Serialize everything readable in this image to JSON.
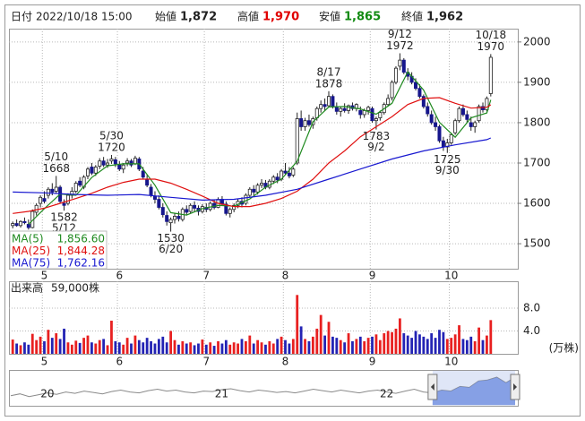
{
  "header": {
    "date_label": "日付",
    "date": "2022/10/18 15:00",
    "open_label": "始値",
    "open": "1,872",
    "high_label": "高値",
    "high": "1,970",
    "low_label": "安値",
    "low": "1,865",
    "close_label": "終値",
    "close": "1,962"
  },
  "chart_data": [
    {
      "type": "candlestick",
      "categories": [
        null,
        null,
        null,
        null,
        null,
        null,
        null,
        null,
        "5",
        null,
        null,
        null,
        null,
        null,
        null,
        null,
        null,
        null,
        null,
        null,
        null,
        null,
        null,
        null,
        null,
        null,
        null,
        "6",
        null,
        null,
        null,
        null,
        null,
        null,
        null,
        null,
        null,
        null,
        null,
        null,
        null,
        null,
        null,
        null,
        null,
        null,
        null,
        null,
        null,
        "7",
        null,
        null,
        null,
        null,
        null,
        null,
        null,
        null,
        null,
        null,
        null,
        null,
        null,
        null,
        null,
        null,
        null,
        null,
        null,
        "8",
        null,
        null,
        null,
        null,
        null,
        null,
        null,
        null,
        null,
        null,
        null,
        null,
        null,
        null,
        null,
        null,
        null,
        null,
        null,
        null,
        null,
        "9",
        null,
        null,
        null,
        null,
        null,
        null,
        null,
        null,
        null,
        null,
        null,
        null,
        null,
        null,
        null,
        null,
        null,
        null,
        null,
        "10",
        null,
        null,
        null,
        null,
        null,
        null,
        null,
        null,
        null,
        null
      ],
      "open": [
        1545,
        1550,
        1545,
        1555,
        1548,
        1540,
        1578,
        1600,
        1612,
        1620,
        1635,
        1630,
        1640,
        1600,
        1600,
        1620,
        1630,
        1655,
        1640,
        1668,
        1690,
        1675,
        1692,
        1705,
        1695,
        1705,
        1708,
        1695,
        1685,
        1700,
        1705,
        1698,
        1710,
        1680,
        1660,
        1640,
        1618,
        1610,
        1590,
        1570,
        1552,
        1560,
        1568,
        1560,
        1585,
        1580,
        1595,
        1588,
        1580,
        1590,
        1585,
        1600,
        1590,
        1610,
        1598,
        1575,
        1585,
        1595,
        1605,
        1600,
        1620,
        1635,
        1628,
        1645,
        1650,
        1640,
        1655,
        1665,
        1660,
        1680,
        1675,
        1670,
        1700,
        1810,
        1790,
        1805,
        1795,
        1812,
        1835,
        1845,
        1842,
        1865,
        1840,
        1828,
        1835,
        1830,
        1842,
        1835,
        1830,
        1820,
        1830,
        1835,
        1805,
        1812,
        1825,
        1845,
        1862,
        1900,
        1940,
        1955,
        1925,
        1915,
        1900,
        1885,
        1865,
        1840,
        1820,
        1800,
        1790,
        1755,
        1740,
        1750,
        1775,
        1805,
        1835,
        1820,
        1800,
        1790,
        1805,
        1840,
        1832,
        1872
      ],
      "high": [
        1555,
        1560,
        1558,
        1565,
        1560,
        1585,
        1600,
        1620,
        1630,
        1640,
        1650,
        1668,
        1645,
        1610,
        1625,
        1640,
        1655,
        1665,
        1670,
        1690,
        1700,
        1695,
        1712,
        1715,
        1710,
        1720,
        1715,
        1705,
        1700,
        1712,
        1710,
        1718,
        1715,
        1690,
        1670,
        1648,
        1630,
        1620,
        1600,
        1580,
        1565,
        1575,
        1580,
        1590,
        1595,
        1600,
        1605,
        1595,
        1598,
        1600,
        1605,
        1610,
        1615,
        1618,
        1605,
        1590,
        1600,
        1610,
        1615,
        1625,
        1640,
        1645,
        1650,
        1660,
        1658,
        1660,
        1670,
        1675,
        1685,
        1700,
        1690,
        1690,
        1825,
        1830,
        1812,
        1820,
        1815,
        1840,
        1855,
        1860,
        1878,
        1870,
        1850,
        1840,
        1848,
        1845,
        1850,
        1848,
        1840,
        1835,
        1842,
        1840,
        1815,
        1830,
        1850,
        1870,
        1905,
        1940,
        1972,
        1960,
        1935,
        1925,
        1910,
        1895,
        1870,
        1850,
        1830,
        1815,
        1795,
        1765,
        1760,
        1775,
        1810,
        1840,
        1845,
        1830,
        1815,
        1805,
        1845,
        1850,
        1865,
        1970
      ],
      "low": [
        1538,
        1542,
        1540,
        1548,
        1535,
        1538,
        1570,
        1590,
        1600,
        1612,
        1620,
        1625,
        1600,
        1582,
        1595,
        1612,
        1625,
        1640,
        1635,
        1660,
        1670,
        1668,
        1685,
        1690,
        1688,
        1698,
        1690,
        1680,
        1675,
        1692,
        1690,
        1695,
        1680,
        1660,
        1640,
        1615,
        1600,
        1585,
        1565,
        1545,
        1530,
        1550,
        1555,
        1555,
        1570,
        1575,
        1580,
        1570,
        1575,
        1578,
        1580,
        1585,
        1588,
        1595,
        1570,
        1565,
        1578,
        1588,
        1590,
        1595,
        1615,
        1620,
        1622,
        1638,
        1635,
        1635,
        1648,
        1650,
        1655,
        1670,
        1662,
        1665,
        1695,
        1780,
        1780,
        1790,
        1785,
        1805,
        1825,
        1830,
        1838,
        1835,
        1820,
        1815,
        1825,
        1822,
        1830,
        1828,
        1810,
        1812,
        1820,
        1800,
        1783,
        1805,
        1820,
        1840,
        1855,
        1895,
        1930,
        1920,
        1905,
        1895,
        1880,
        1860,
        1835,
        1815,
        1795,
        1780,
        1750,
        1730,
        1725,
        1745,
        1770,
        1800,
        1815,
        1800,
        1780,
        1775,
        1800,
        1825,
        1828,
        1865
      ],
      "close": [
        1550,
        1545,
        1555,
        1552,
        1540,
        1580,
        1595,
        1615,
        1605,
        1635,
        1628,
        1640,
        1605,
        1595,
        1620,
        1630,
        1650,
        1645,
        1665,
        1685,
        1675,
        1690,
        1705,
        1695,
        1700,
        1710,
        1698,
        1685,
        1695,
        1705,
        1695,
        1712,
        1685,
        1665,
        1645,
        1620,
        1610,
        1590,
        1572,
        1555,
        1560,
        1568,
        1562,
        1585,
        1578,
        1595,
        1588,
        1580,
        1592,
        1585,
        1600,
        1590,
        1610,
        1598,
        1575,
        1585,
        1595,
        1605,
        1598,
        1620,
        1635,
        1628,
        1645,
        1650,
        1640,
        1655,
        1665,
        1658,
        1680,
        1675,
        1668,
        1685,
        1810,
        1790,
        1805,
        1795,
        1810,
        1835,
        1845,
        1840,
        1865,
        1840,
        1828,
        1835,
        1830,
        1842,
        1835,
        1845,
        1820,
        1830,
        1838,
        1805,
        1810,
        1825,
        1845,
        1860,
        1900,
        1935,
        1955,
        1925,
        1915,
        1900,
        1885,
        1865,
        1840,
        1822,
        1800,
        1790,
        1755,
        1740,
        1750,
        1770,
        1805,
        1835,
        1820,
        1808,
        1790,
        1800,
        1840,
        1832,
        1860,
        1962
      ],
      "up_color": "#ffffff",
      "down_color": "#16168c",
      "ylim": [
        1438,
        2033
      ],
      "yticks": [
        1500,
        1600,
        1700,
        1800,
        1900,
        2000
      ],
      "grid": true,
      "annotations": [
        {
          "date": "5/10",
          "price": 1668
        },
        {
          "date": "5/12",
          "price": 1582
        },
        {
          "date": "5/30",
          "price": 1720
        },
        {
          "date": "6/20",
          "price": 1530
        },
        {
          "date": "8/17",
          "price": 1878
        },
        {
          "date": "9/2",
          "price": 1783
        },
        {
          "date": "9/12",
          "price": 1972
        },
        {
          "date": "9/30",
          "price": 1725
        },
        {
          "date": "10/18",
          "price": 1970
        }
      ],
      "series": [
        {
          "name": "MA(5)",
          "color": "#1f8a1f",
          "legend_value": {
            "value": 1856.6,
            "label": "1,856.60"
          },
          "x": [
            4,
            8,
            12,
            16,
            20,
            24,
            28,
            32,
            36,
            40,
            44,
            48,
            52,
            56,
            60,
            64,
            68,
            72,
            76,
            80,
            84,
            88,
            92,
            96,
            100,
            104,
            108,
            112,
            116,
            120,
            121
          ],
          "values": [
            1548,
            1587,
            1623,
            1620,
            1664,
            1693,
            1698,
            1698,
            1645,
            1577,
            1571,
            1587,
            1595,
            1593,
            1611,
            1640,
            1660,
            1704,
            1802,
            1839,
            1840,
            1834,
            1821,
            1848,
            1926,
            1881,
            1801,
            1764,
            1812,
            1824,
            1856.6
          ]
        },
        {
          "name": "MA(25)",
          "color": "#e01010",
          "legend_value": {
            "value": 1844.28,
            "label": "1,844.28"
          },
          "x": [
            0,
            4,
            8,
            12,
            16,
            20,
            24,
            28,
            32,
            36,
            40,
            44,
            48,
            52,
            56,
            60,
            64,
            68,
            72,
            76,
            80,
            84,
            88,
            92,
            96,
            100,
            104,
            108,
            112,
            116,
            120,
            121
          ],
          "values": [
            1575,
            1580,
            1588,
            1600,
            1612,
            1625,
            1640,
            1652,
            1660,
            1660,
            1650,
            1635,
            1618,
            1600,
            1592,
            1592,
            1600,
            1612,
            1630,
            1660,
            1700,
            1730,
            1765,
            1790,
            1815,
            1845,
            1860,
            1862,
            1848,
            1836,
            1838,
            1844.28
          ]
        },
        {
          "name": "MA(75)",
          "color": "#1818d0",
          "legend_value": {
            "value": 1762.16,
            "label": "1,762.16"
          },
          "x": [
            0,
            8,
            16,
            24,
            32,
            40,
            48,
            56,
            64,
            72,
            80,
            88,
            96,
            104,
            112,
            120,
            121
          ],
          "values": [
            1628,
            1626,
            1622,
            1620,
            1622,
            1615,
            1608,
            1610,
            1620,
            1635,
            1660,
            1685,
            1710,
            1730,
            1745,
            1758,
            1762.16
          ]
        }
      ]
    },
    {
      "type": "bar",
      "title": "出来高",
      "subtitle": "59,000株",
      "unit": "(万株)",
      "values": [
        2.5,
        1.8,
        1.5,
        2.0,
        1.6,
        3.5,
        2.4,
        3.0,
        2.2,
        4.2,
        2.8,
        3.6,
        2.6,
        4.4,
        2.0,
        1.6,
        2.3,
        1.9,
        2.8,
        3.2,
        2.0,
        1.8,
        2.4,
        2.6,
        1.5,
        5.8,
        2.2,
        2.0,
        1.6,
        2.8,
        1.8,
        3.2,
        2.4,
        2.0,
        2.8,
        2.2,
        1.8,
        2.6,
        3.0,
        2.0,
        4.0,
        2.4,
        1.6,
        2.2,
        1.8,
        2.0,
        1.5,
        1.8,
        2.5,
        1.6,
        2.0,
        1.4,
        2.2,
        1.8,
        2.4,
        1.6,
        2.0,
        1.8,
        2.6,
        2.2,
        3.2,
        1.8,
        2.4,
        2.0,
        1.6,
        2.2,
        1.8,
        2.6,
        3.0,
        2.4,
        1.8,
        2.6,
        10.3,
        4.8,
        2.6,
        2.2,
        3.0,
        4.4,
        6.8,
        3.2,
        5.6,
        3.0,
        2.8,
        2.4,
        2.0,
        3.6,
        2.2,
        2.6,
        3.0,
        2.2,
        2.8,
        3.0,
        3.4,
        2.4,
        3.6,
        4.0,
        3.8,
        4.4,
        6.2,
        3.6,
        3.2,
        2.8,
        4.0,
        3.4,
        3.0,
        2.6,
        3.6,
        2.8,
        4.2,
        3.8,
        2.6,
        2.8,
        3.4,
        5.0,
        2.6,
        2.4,
        3.0,
        2.2,
        4.6,
        2.4,
        3.2,
        5.9
      ],
      "up_color": "#e82020",
      "down_color": "#2323b4",
      "ylim": [
        0,
        12.7
      ],
      "yticks": [
        {
          "value": 4,
          "label": "4.0"
        },
        {
          "value": 8,
          "label": "8.0"
        }
      ],
      "grid": true
    },
    {
      "type": "navigator",
      "color": "#8a8a8a",
      "selection_color": "#6f8fe0",
      "values": [
        1500,
        1540,
        1480,
        1520,
        1560,
        1530,
        1580,
        1550,
        1600,
        1570,
        1540,
        1590,
        1620,
        1580,
        1560,
        1610,
        1640,
        1600,
        1620,
        1580,
        1560,
        1600,
        1590,
        1630,
        1650,
        1610,
        1580,
        1620,
        1600,
        1570,
        1590,
        1560,
        1600,
        1640,
        1610,
        1580,
        1620,
        1590,
        1560,
        1600,
        1620,
        1580,
        1550,
        1600,
        1640,
        1580,
        1560,
        1620,
        1600,
        1700,
        1680,
        1820,
        1840,
        1900,
        1780,
        1900
      ],
      "ylim": [
        1300,
        2000
      ],
      "xticks": [
        {
          "value": 4,
          "label": "20"
        },
        {
          "value": 23,
          "label": "21"
        },
        {
          "value": 41,
          "label": "22"
        }
      ],
      "selection": [
        46,
        55
      ]
    }
  ]
}
